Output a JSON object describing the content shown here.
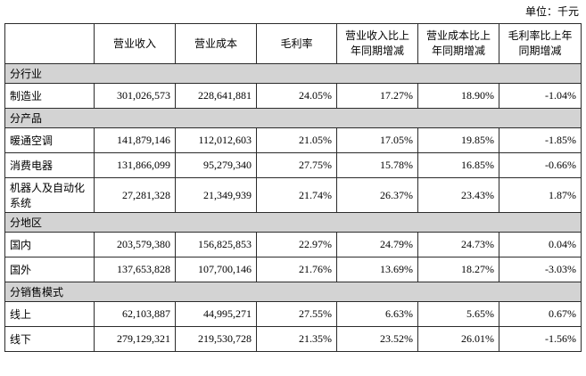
{
  "unit_label": "单位：千元",
  "colors": {
    "section_bg": "#d3d3d3",
    "border": "#2b2b2b",
    "text": "#000000"
  },
  "table": {
    "columns": [
      "",
      "营业收入",
      "营业成本",
      "毛利率",
      "营业收入比上年同期增减",
      "营业成本比上年同期增减",
      "毛利率比上年同期增减"
    ],
    "sections": [
      {
        "label": "分行业",
        "rows": [
          {
            "name": "制造业",
            "values": [
              "301,026,573",
              "228,641,881",
              "24.05%",
              "17.27%",
              "18.90%",
              "-1.04%"
            ]
          }
        ]
      },
      {
        "label": "分产品",
        "rows": [
          {
            "name": "暖通空调",
            "values": [
              "141,879,146",
              "112,012,603",
              "21.05%",
              "17.05%",
              "19.85%",
              "-1.85%"
            ]
          },
          {
            "name": "消费电器",
            "values": [
              "131,866,099",
              "95,279,340",
              "27.75%",
              "15.78%",
              "16.85%",
              "-0.66%"
            ]
          },
          {
            "name": "机器人及自动化系统",
            "values": [
              "27,281,328",
              "21,349,939",
              "21.74%",
              "26.37%",
              "23.43%",
              "1.87%"
            ]
          }
        ]
      },
      {
        "label": "分地区",
        "rows": [
          {
            "name": "国内",
            "values": [
              "203,579,380",
              "156,825,853",
              "22.97%",
              "24.79%",
              "24.73%",
              "0.04%"
            ]
          },
          {
            "name": "国外",
            "values": [
              "137,653,828",
              "107,700,146",
              "21.76%",
              "13.69%",
              "18.27%",
              "-3.03%"
            ]
          }
        ]
      },
      {
        "label": "分销售模式",
        "rows": [
          {
            "name": "线上",
            "values": [
              "62,103,887",
              "44,995,271",
              "27.55%",
              "6.63%",
              "5.65%",
              "0.67%"
            ]
          },
          {
            "name": "线下",
            "values": [
              "279,129,321",
              "219,530,728",
              "21.35%",
              "23.52%",
              "26.01%",
              "-1.56%"
            ]
          }
        ]
      }
    ]
  }
}
